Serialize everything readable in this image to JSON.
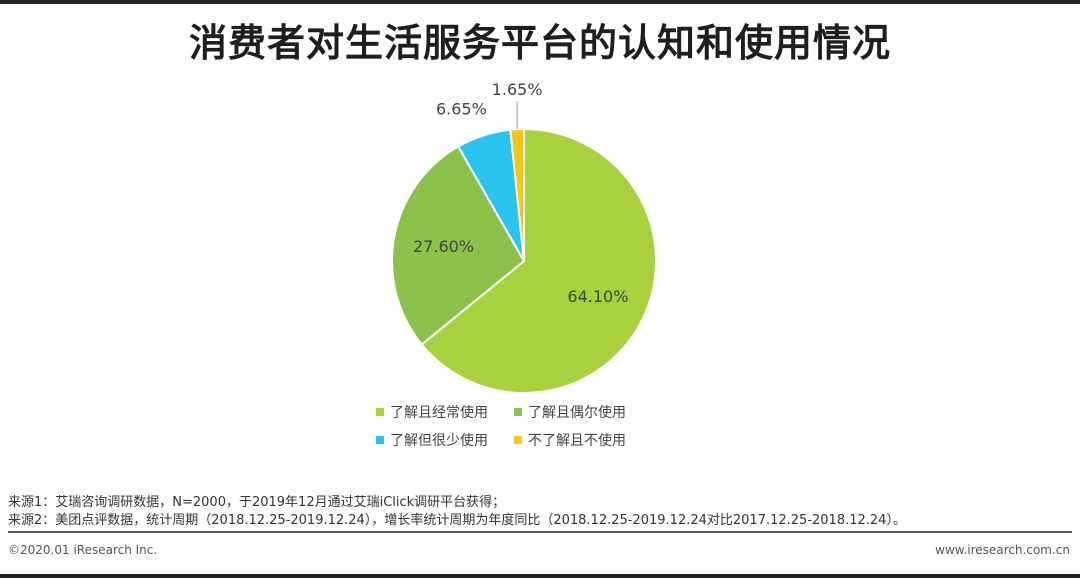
{
  "header": {
    "title": "消费者对生活服务平台的认知和使用情况"
  },
  "chart_data": {
    "type": "pie",
    "categories": [
      "了解且经常使用",
      "了解且偶尔使用",
      "了解但很少使用",
      "不了解且不使用"
    ],
    "values": [
      64.1,
      27.6,
      6.65,
      1.65
    ],
    "data_labels": [
      "64.10%",
      "27.60%",
      "6.65%",
      "1.65%"
    ],
    "colors": [
      "#a8d13e",
      "#8bc34a",
      "#29c5f0",
      "#f5c518"
    ],
    "start_angle_deg": 0,
    "direction": "clockwise",
    "legend_position": "bottom"
  },
  "legend": {
    "items": [
      {
        "label": "了解且经常使用",
        "color": "#a8d13e"
      },
      {
        "label": "了解且偶尔使用",
        "color": "#8bc34a"
      },
      {
        "label": "了解但很少使用",
        "color": "#29c5f0"
      },
      {
        "label": "不了解且不使用",
        "color": "#f5c518"
      }
    ]
  },
  "notes": {
    "source1": "来源1：艾瑞咨询调研数据，N=2000，于2019年12月通过艾瑞iClick调研平台获得；",
    "source2": "来源2：美团点评数据，统计周期（2018.12.25-2019.12.24），增长率统计周期为年度同比（2018.12.25-2019.12.24对比2017.12.25-2018.12.24）。"
  },
  "footer": {
    "copyright": "©2020.01 iResearch Inc.",
    "website": "www.iresearch.com.cn"
  }
}
